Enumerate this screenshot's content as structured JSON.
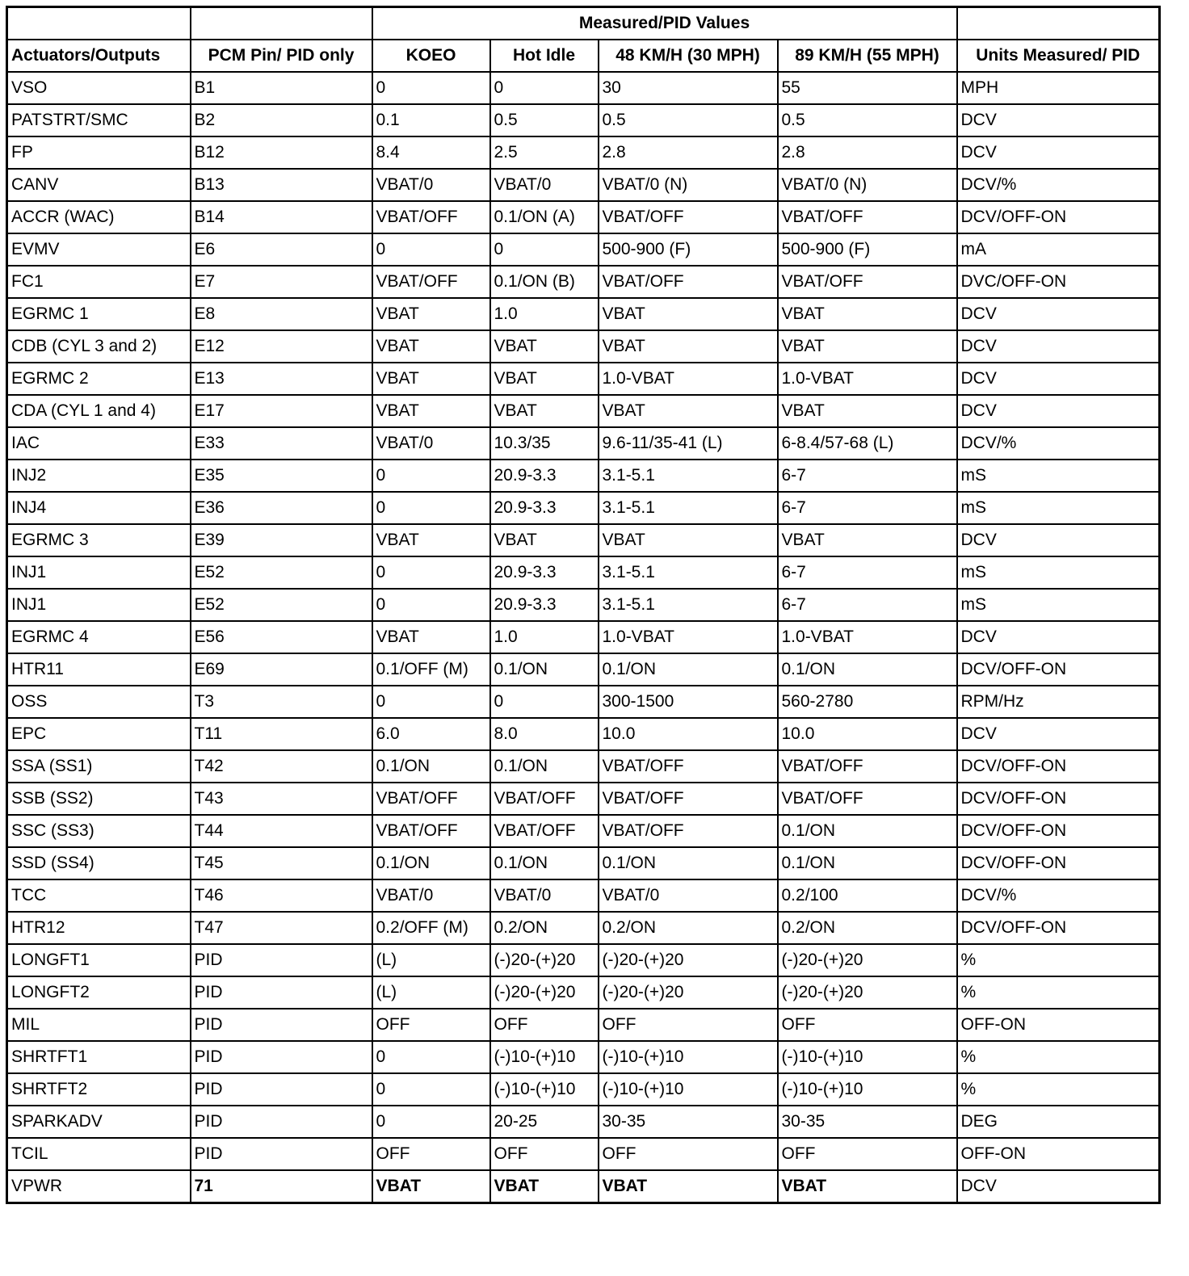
{
  "table": {
    "group_header": "Measured/PID Values",
    "columns": [
      "Actuators/Outputs",
      "PCM Pin/ PID only",
      "KOEO",
      "Hot Idle",
      "48 KM/H (30 MPH)",
      "89 KM/H (55 MPH)",
      "Units Measured/ PID"
    ],
    "rows": [
      [
        "VSO",
        "B1",
        "0",
        "0",
        "30",
        "55",
        "MPH"
      ],
      [
        "PATSTRT/SMC",
        "B2",
        "0.1",
        "0.5",
        "0.5",
        "0.5",
        "DCV"
      ],
      [
        "FP",
        "B12",
        "8.4",
        "2.5",
        "2.8",
        "2.8",
        "DCV"
      ],
      [
        "CANV",
        "B13",
        "VBAT/0",
        "VBAT/0",
        "VBAT/0 (N)",
        "VBAT/0 (N)",
        "DCV/%"
      ],
      [
        "ACCR (WAC)",
        "B14",
        "VBAT/OFF",
        "0.1/ON (A)",
        "VBAT/OFF",
        "VBAT/OFF",
        "DCV/OFF-ON"
      ],
      [
        "EVMV",
        "E6",
        "0",
        "0",
        "500-900 (F)",
        "500-900 (F)",
        "mA"
      ],
      [
        "FC1",
        "E7",
        "VBAT/OFF",
        "0.1/ON (B)",
        "VBAT/OFF",
        "VBAT/OFF",
        "DVC/OFF-ON"
      ],
      [
        "EGRMC 1",
        "E8",
        "VBAT",
        "1.0",
        "VBAT",
        "VBAT",
        "DCV"
      ],
      [
        "CDB (CYL 3 and 2)",
        "E12",
        "VBAT",
        "VBAT",
        "VBAT",
        "VBAT",
        "DCV"
      ],
      [
        "EGRMC 2",
        "E13",
        "VBAT",
        "VBAT",
        "1.0-VBAT",
        "1.0-VBAT",
        "DCV"
      ],
      [
        "CDA (CYL 1 and 4)",
        "E17",
        "VBAT",
        "VBAT",
        "VBAT",
        "VBAT",
        "DCV"
      ],
      [
        "IAC",
        "E33",
        "VBAT/0",
        "10.3/35",
        "9.6-11/35-41 (L)",
        "6-8.4/57-68 (L)",
        "DCV/%"
      ],
      [
        "INJ2",
        "E35",
        "0",
        "20.9-3.3",
        "3.1-5.1",
        "6-7",
        "mS"
      ],
      [
        "INJ4",
        "E36",
        "0",
        "20.9-3.3",
        "3.1-5.1",
        "6-7",
        "mS"
      ],
      [
        "EGRMC 3",
        "E39",
        "VBAT",
        "VBAT",
        "VBAT",
        "VBAT",
        "DCV"
      ],
      [
        "INJ1",
        "E52",
        "0",
        "20.9-3.3",
        "3.1-5.1",
        "6-7",
        "mS"
      ],
      [
        "INJ1",
        "E52",
        "0",
        "20.9-3.3",
        "3.1-5.1",
        "6-7",
        "mS"
      ],
      [
        "EGRMC 4",
        "E56",
        "VBAT",
        "1.0",
        "1.0-VBAT",
        "1.0-VBAT",
        "DCV"
      ],
      [
        "HTR11",
        "E69",
        "0.1/OFF (M)",
        "0.1/ON",
        "0.1/ON",
        "0.1/ON",
        "DCV/OFF-ON"
      ],
      [
        "OSS",
        "T3",
        "0",
        "0",
        "300-1500",
        "560-2780",
        "RPM/Hz"
      ],
      [
        "EPC",
        "T11",
        "6.0",
        "8.0",
        "10.0",
        "10.0",
        "DCV"
      ],
      [
        "SSA (SS1)",
        "T42",
        "0.1/ON",
        "0.1/ON",
        "VBAT/OFF",
        "VBAT/OFF",
        "DCV/OFF-ON"
      ],
      [
        "SSB (SS2)",
        "T43",
        "VBAT/OFF",
        "VBAT/OFF",
        "VBAT/OFF",
        "VBAT/OFF",
        "DCV/OFF-ON"
      ],
      [
        "SSC (SS3)",
        "T44",
        "VBAT/OFF",
        "VBAT/OFF",
        "VBAT/OFF",
        "0.1/ON",
        "DCV/OFF-ON"
      ],
      [
        "SSD (SS4)",
        "T45",
        "0.1/ON",
        "0.1/ON",
        "0.1/ON",
        "0.1/ON",
        "DCV/OFF-ON"
      ],
      [
        "TCC",
        "T46",
        "VBAT/0",
        "VBAT/0",
        "VBAT/0",
        "0.2/100",
        "DCV/%"
      ],
      [
        "HTR12",
        "T47",
        "0.2/OFF (M)",
        "0.2/ON",
        "0.2/ON",
        "0.2/ON",
        "DCV/OFF-ON"
      ],
      [
        "LONGFT1",
        "PID",
        "(L)",
        "(-)20-(+)20",
        "(-)20-(+)20",
        "(-)20-(+)20",
        "%"
      ],
      [
        "LONGFT2",
        "PID",
        "(L)",
        "(-)20-(+)20",
        "(-)20-(+)20",
        "(-)20-(+)20",
        "%"
      ],
      [
        "MIL",
        "PID",
        "OFF",
        "OFF",
        "OFF",
        "OFF",
        "OFF-ON"
      ],
      [
        "SHRTFT1",
        "PID",
        "0",
        "(-)10-(+)10",
        "(-)10-(+)10",
        "(-)10-(+)10",
        "%"
      ],
      [
        "SHRTFT2",
        "PID",
        "0",
        "(-)10-(+)10",
        "(-)10-(+)10",
        "(-)10-(+)10",
        "%"
      ],
      [
        "SPARKADV",
        "PID",
        "0",
        "20-25",
        "30-35",
        "30-35",
        "DEG"
      ],
      [
        "TCIL",
        "PID",
        "OFF",
        "OFF",
        "OFF",
        "OFF",
        "OFF-ON"
      ],
      [
        "VPWR",
        "71",
        "VBAT",
        "VBAT",
        "VBAT",
        "VBAT",
        "DCV"
      ]
    ],
    "bold_rows": [
      34
    ]
  }
}
